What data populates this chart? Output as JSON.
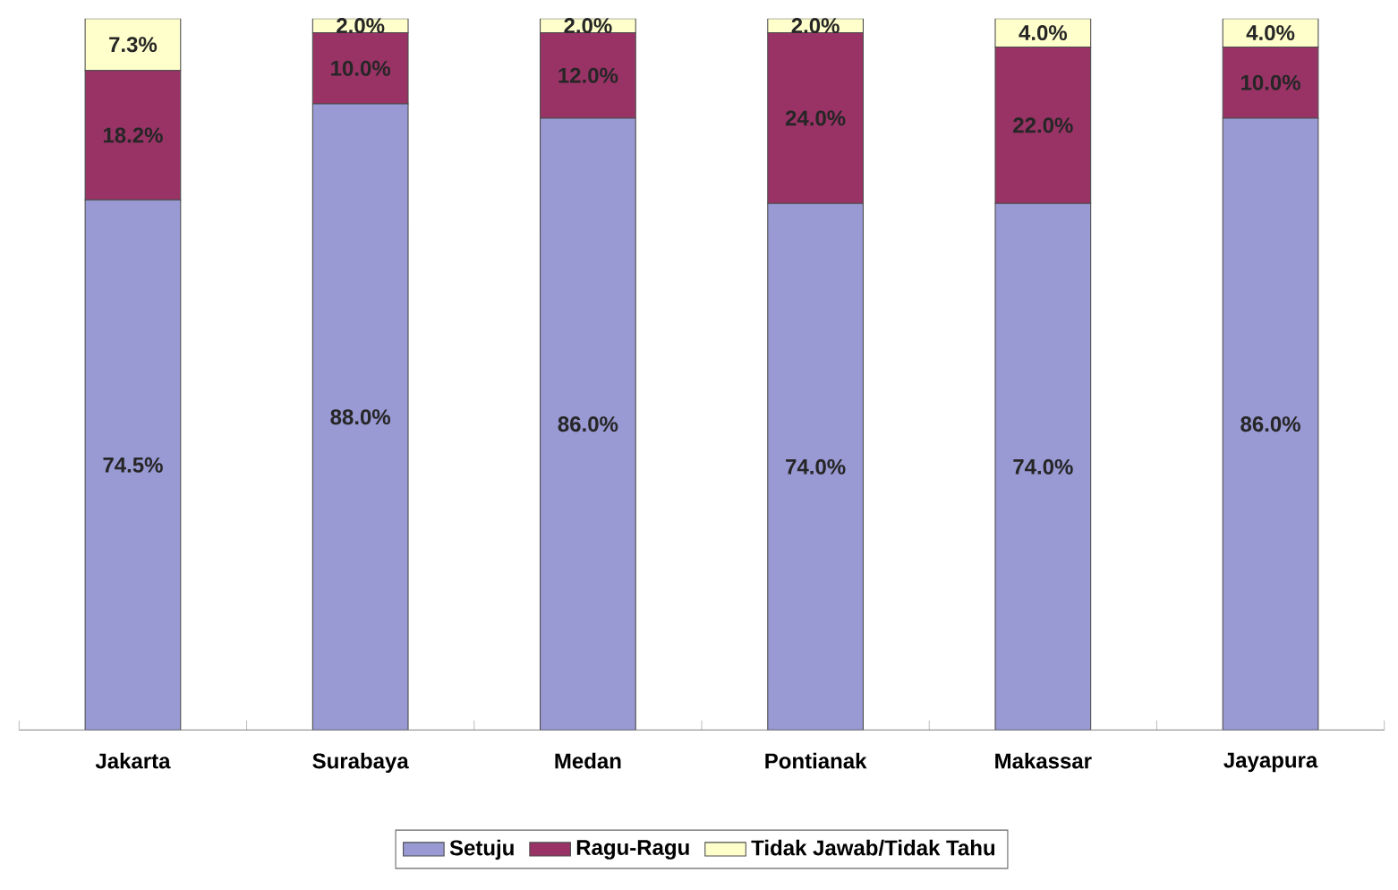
{
  "chart_data": {
    "type": "bar",
    "stacked": true,
    "legend": "bottom",
    "tick_labels": "x",
    "categories": [
      "Jakarta",
      "Surabaya",
      "Medan",
      "Pontianak",
      "Makassar",
      "Jayapura"
    ],
    "series": [
      {
        "name": "Setuju",
        "color": "#9999d4",
        "values": [
          74.5,
          88.0,
          86.0,
          74.0,
          74.0,
          86.0
        ],
        "value_labels": [
          "74.5%",
          "88.0%",
          "86.0%",
          "74.0%",
          "74.0%",
          "86.0%"
        ]
      },
      {
        "name": "Ragu-Ragu",
        "color": "#993366",
        "values": [
          18.2,
          10.0,
          12.0,
          24.0,
          22.0,
          10.0
        ],
        "value_labels": [
          "18.2%",
          "10.0%",
          "12.0%",
          "24.0%",
          "22.0%",
          "10.0%"
        ]
      },
      {
        "name": "Tidak Jawab/Tidak Tahu",
        "color": "#ffffcc",
        "values": [
          7.3,
          2.0,
          2.0,
          2.0,
          4.0,
          4.0
        ],
        "value_labels": [
          "7.3%",
          "2.0%",
          "2.0%",
          "2.0%",
          "4.0%",
          "4.0%"
        ]
      }
    ]
  }
}
